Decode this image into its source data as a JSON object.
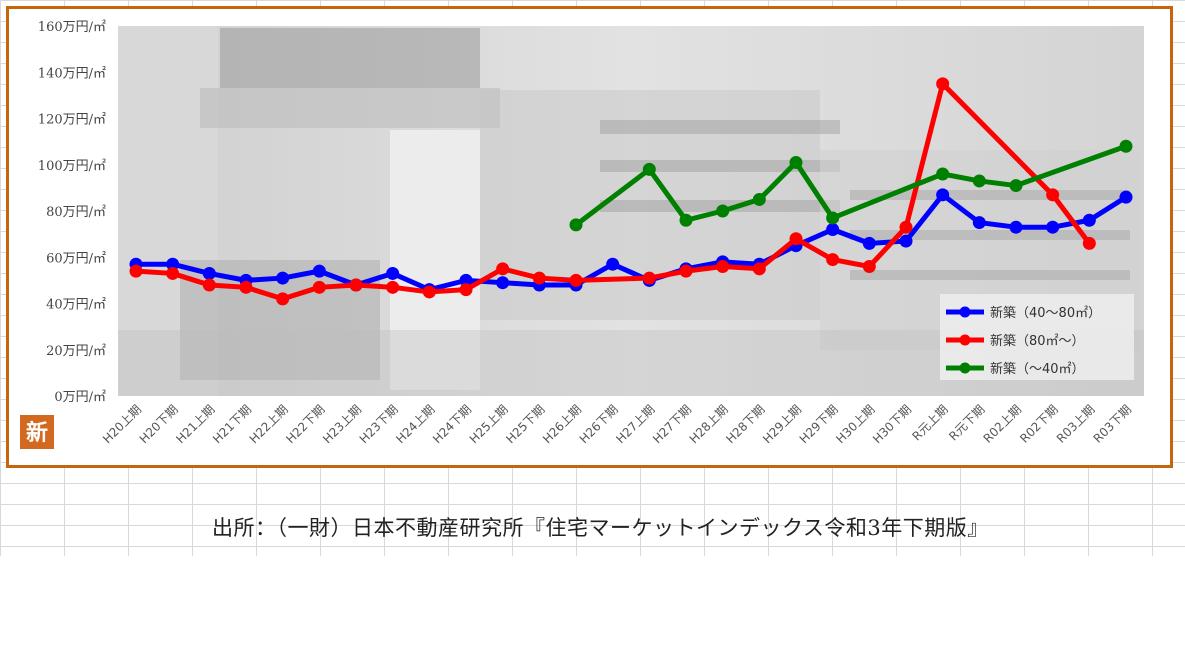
{
  "chart_data": {
    "type": "line",
    "title": "",
    "xlabel": "",
    "ylabel": "",
    "ylim": [
      0,
      160
    ],
    "y_ticks": [
      "0万円/㎡",
      "20万円/㎡",
      "40万円/㎡",
      "60万円/㎡",
      "80万円/㎡",
      "100万円/㎡",
      "120万円/㎡",
      "140万円/㎡",
      "160万円/㎡"
    ],
    "y_tick_values": [
      0,
      20,
      40,
      60,
      80,
      100,
      120,
      140,
      160
    ],
    "categories": [
      "H20上期",
      "H20下期",
      "H21上期",
      "H21下期",
      "H22上期",
      "H22下期",
      "H23上期",
      "H23下期",
      "H24上期",
      "H24下期",
      "H25上期",
      "H25下期",
      "H26上期",
      "H26下期",
      "H27上期",
      "H27下期",
      "H28上期",
      "H28下期",
      "H29上期",
      "H29下期",
      "H30上期",
      "H30下期",
      "R元上期",
      "R元下期",
      "R02上期",
      "R02下期",
      "R03上期",
      "R03下期"
    ],
    "legend_position": "bottom-right",
    "series": [
      {
        "name": "新築（40～80㎡）",
        "color": "#0000ff",
        "values": [
          57,
          57,
          53,
          50,
          51,
          54,
          48,
          53,
          46,
          50,
          49,
          48,
          48,
          57,
          50,
          55,
          58,
          57,
          65,
          72,
          66,
          67,
          87,
          75,
          73,
          73,
          76,
          86
        ]
      },
      {
        "name": "新築（80㎡～）",
        "color": "#ff0000",
        "values": [
          54,
          53,
          48,
          47,
          42,
          47,
          48,
          47,
          45,
          46,
          55,
          51,
          50,
          null,
          51,
          54,
          56,
          55,
          68,
          59,
          56,
          73,
          135,
          null,
          null,
          87,
          66,
          null
        ]
      },
      {
        "name": "新築（～40㎡）",
        "color": "#008000",
        "values": [
          null,
          null,
          null,
          null,
          null,
          null,
          null,
          null,
          null,
          null,
          null,
          null,
          74,
          null,
          98,
          76,
          80,
          85,
          101,
          77,
          null,
          null,
          96,
          93,
          91,
          null,
          null,
          108
        ]
      }
    ]
  },
  "icon_label": "新",
  "source_note": "出所：（一財）日本不動産研究所『住宅マーケットインデックス令和3年下期版』"
}
